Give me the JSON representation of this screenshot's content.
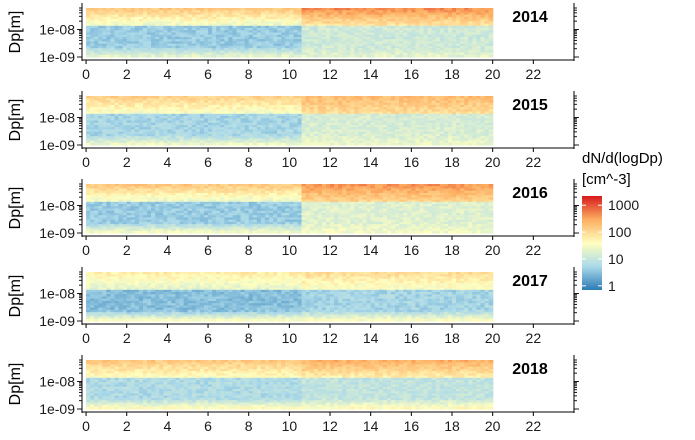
{
  "chart_data": {
    "type": "heatmap",
    "x_ticks": [
      0,
      2,
      4,
      6,
      8,
      10,
      12,
      14,
      16,
      18,
      20,
      22
    ],
    "xlim": [
      -0.2,
      24
    ],
    "x_data_range": [
      0,
      20
    ],
    "y_axis_title": "Dp[m]",
    "y_tick_labels": [
      "1e-08",
      "1e-09"
    ],
    "y_scale": "log",
    "ylim": [
      "1e-09",
      "6e-08"
    ],
    "color_scale": {
      "title_line1": "dN/d(logDp)",
      "title_line2": "[cm^-3]",
      "scale": "log",
      "ticks": [
        {
          "value": 1000,
          "label": "1000"
        },
        {
          "value": 100,
          "label": "100"
        },
        {
          "value": 10,
          "label": "10"
        },
        {
          "value": 1,
          "label": "1"
        }
      ],
      "range": [
        0.7,
        2200
      ],
      "stops": [
        "#2c7bb6",
        "#abd9e9",
        "#ffffbf",
        "#fdae61",
        "#d7191c"
      ]
    },
    "legend_position": "right",
    "panels": [
      {
        "label": "2014",
        "description_values": {
          "top_band_before_10h": 150,
          "top_band_after_11h": 450,
          "middle_band_before_10h": 4,
          "middle_band_after_11h": 12,
          "bottom_band": 20
        }
      },
      {
        "label": "2015",
        "description_values": {
          "top_band_before_10h": 120,
          "top_band_after_11h": 200,
          "middle_band_before_10h": 5,
          "middle_band_after_11h": 15,
          "bottom_band": 25
        }
      },
      {
        "label": "2016",
        "description_values": {
          "top_band_before_10h": 150,
          "top_band_after_11h": 400,
          "middle_band_before_10h": 4,
          "middle_band_after_11h": 18,
          "bottom_band": 30
        }
      },
      {
        "label": "2017",
        "description_values": {
          "top_band_before_10h": 60,
          "top_band_after_11h": 90,
          "middle_band_before_10h": 3,
          "middle_band_after_11h": 5,
          "bottom_band": 35
        }
      },
      {
        "label": "2018",
        "description_values": {
          "top_band_before_10h": 150,
          "top_band_after_11h": 260,
          "middle_band_before_10h": 6,
          "middle_band_after_11h": 9,
          "bottom_band": 40
        }
      }
    ]
  }
}
